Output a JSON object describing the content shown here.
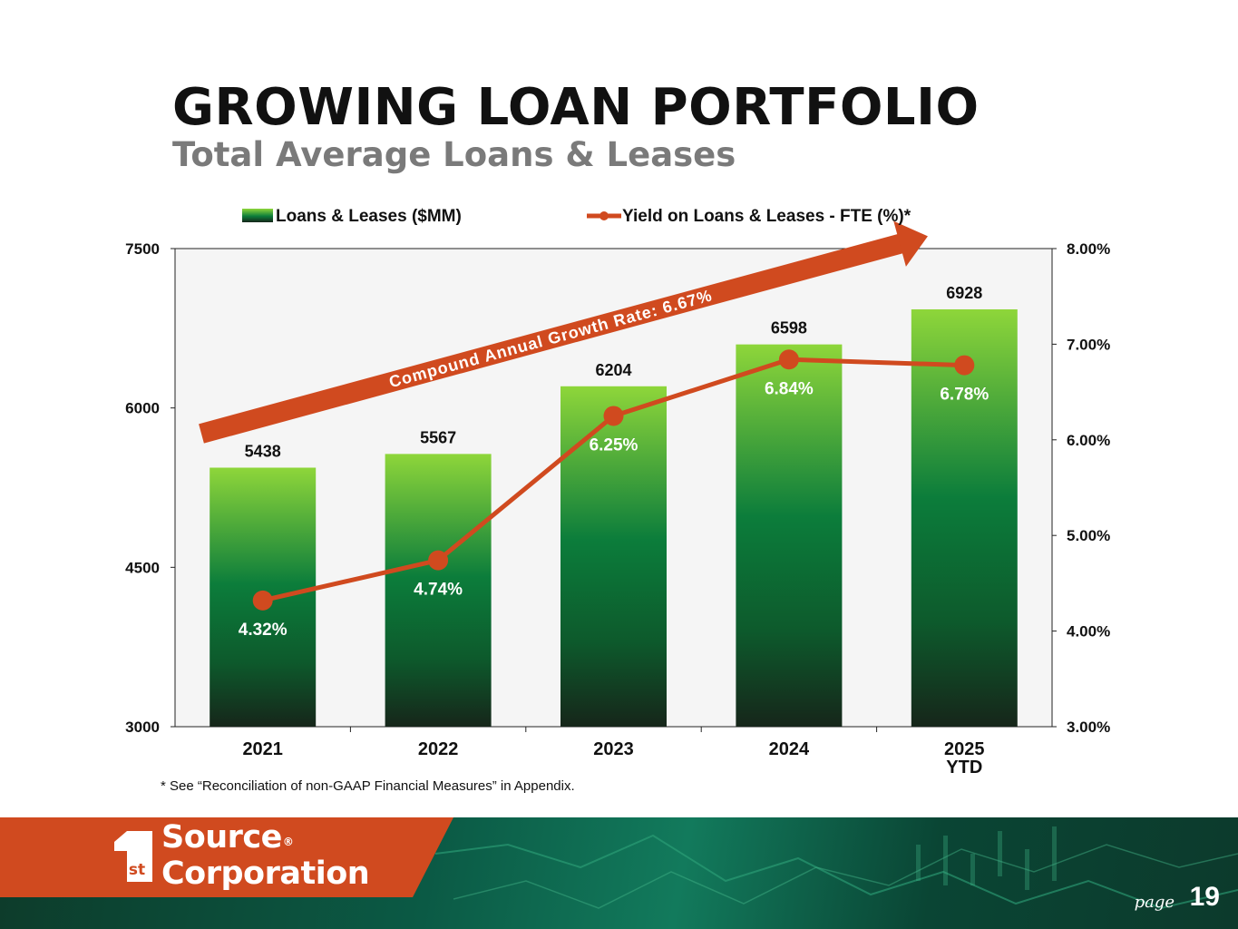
{
  "header": {
    "title": "GROWING LOAN PORTFOLIO",
    "subtitle": "Total Average Loans & Leases"
  },
  "chart_data": {
    "type": "bar",
    "categories": [
      "2021",
      "2022",
      "2023",
      "2024",
      "2025 YTD"
    ],
    "series": [
      {
        "name": "Loans & Leases ($MM)",
        "type": "bar",
        "axis": "left",
        "values": [
          5438,
          5567,
          6204,
          6598,
          6928
        ],
        "data_labels": [
          "5438",
          "5567",
          "6204",
          "6598",
          "6928"
        ],
        "color": "#0e7a3c"
      },
      {
        "name": "Yield on Loans & Leases - FTE (%)*",
        "type": "line",
        "axis": "right",
        "values": [
          4.32,
          4.74,
          6.25,
          6.84,
          6.78
        ],
        "data_labels": [
          "4.32%",
          "4.74%",
          "6.25%",
          "6.84%",
          "6.78%"
        ],
        "color": "#d04a1f"
      }
    ],
    "left_axis": {
      "ylim": [
        3000,
        7500
      ],
      "ticks": [
        "3000",
        "4500",
        "6000",
        "7500"
      ]
    },
    "right_axis": {
      "ylim": [
        3.0,
        8.0
      ],
      "ticks": [
        "3.00%",
        "4.00%",
        "5.00%",
        "6.00%",
        "7.00%",
        "8.00%"
      ]
    },
    "annotation": "Compound Annual Growth Rate: 6.67%",
    "legend_position": "top",
    "grid": false
  },
  "footnote": "* See “Reconciliation of non-GAAP Financial Measures” in Appendix.",
  "footer": {
    "logo_line1": "Source",
    "logo_line2": "Corporation",
    "logo_mark": "st",
    "registered": "®",
    "page_label": "page",
    "page_number": "19",
    "accent_color": "#d04a1f"
  }
}
